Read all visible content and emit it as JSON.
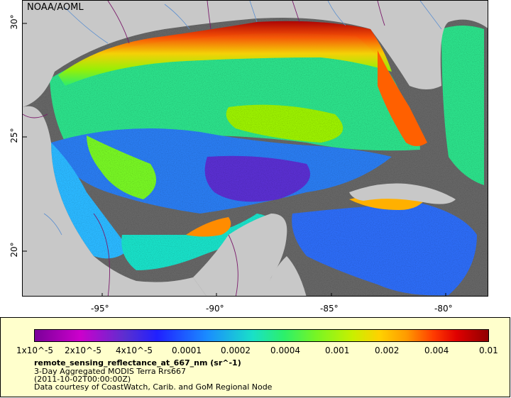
{
  "map": {
    "credit": "NOAA/AOML",
    "y_ticks": [
      {
        "label": "30°"
      },
      {
        "label": "25°"
      },
      {
        "label": "20°"
      }
    ],
    "x_ticks": [
      {
        "label": "-95°"
      },
      {
        "label": "-90°"
      },
      {
        "label": "-85°"
      },
      {
        "label": "-80°"
      }
    ],
    "colors": {
      "land": "#c8c8c8",
      "no_data": "#666666",
      "boundary": "#7a1a6a",
      "river": "#5b8fd0",
      "legend_background": "#ffffcc"
    }
  },
  "legend": {
    "colorbar_ticks": [
      {
        "label": "1x10^-5"
      },
      {
        "label": "2x10^-5"
      },
      {
        "label": "4x10^-5"
      },
      {
        "label": "0.0001"
      },
      {
        "label": "0.0002"
      },
      {
        "label": "0.0004"
      },
      {
        "label": "0.001"
      },
      {
        "label": "0.002"
      },
      {
        "label": "0.004"
      },
      {
        "label": "0.01"
      }
    ],
    "variable_title": "remote_sensing_reflectance_at_667_nm (sr^-1)",
    "product": "3-Day Aggregated MODIS Terra Rrs667",
    "time": "(2011-10-02T00:00:00Z)",
    "courtesy": "Data courtesy of CoastWatch, Carib. and GoM Regional Node"
  }
}
